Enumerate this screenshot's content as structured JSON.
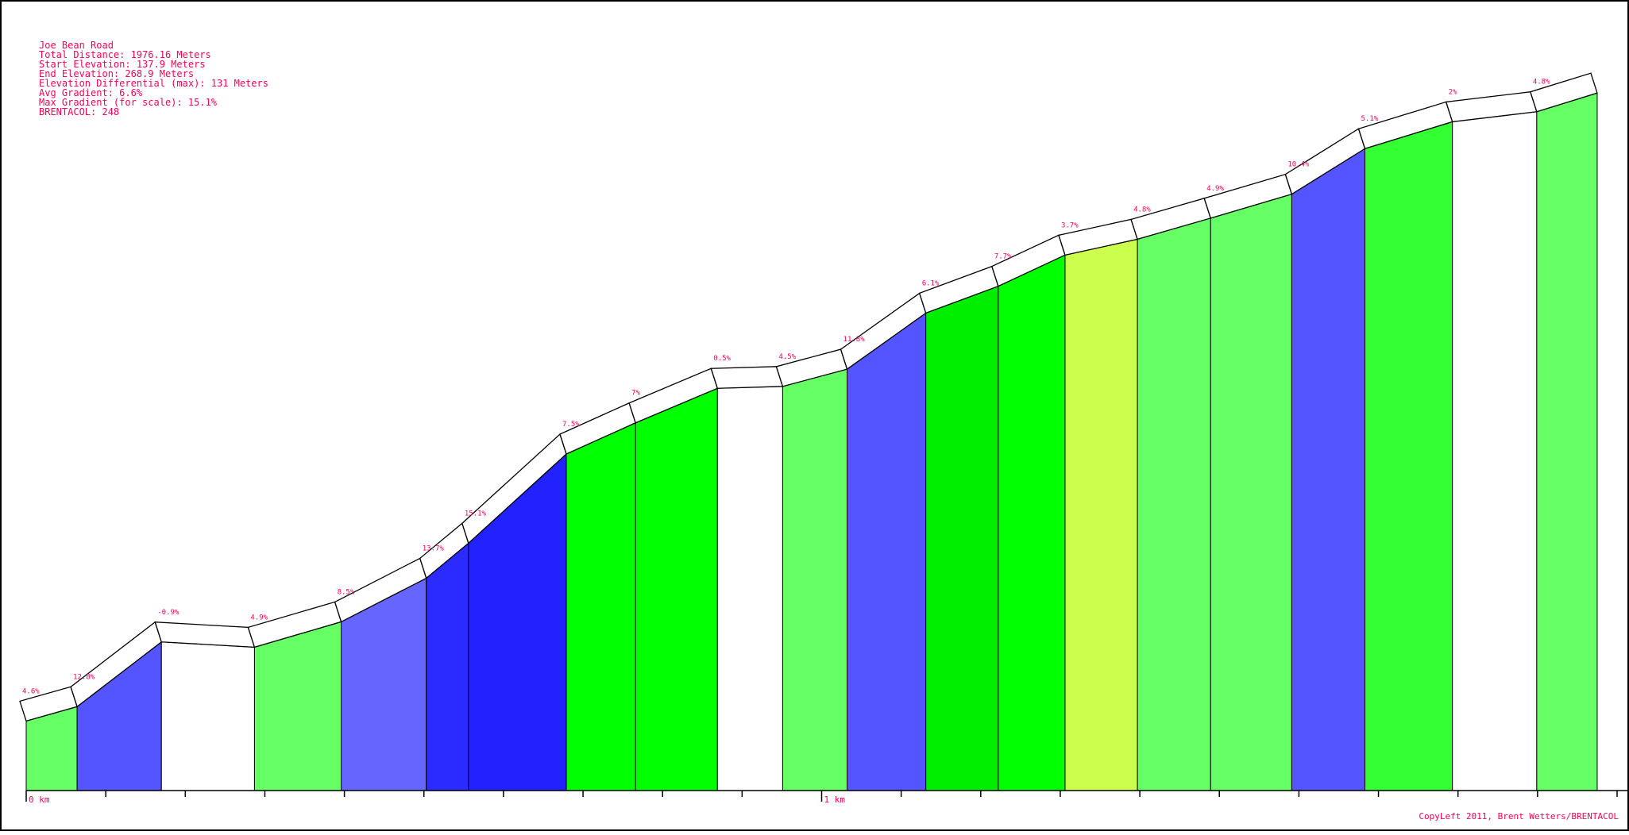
{
  "chart_data": {
    "type": "area",
    "info": [
      "Joe Bean Road",
      "Total Distance: 1976.16 Meters",
      "Start Elevation: 137.9 Meters",
      "End Elevation: 268.9 Meters",
      "Elevation Differential (max): 131 Meters",
      "Avg Gradient: 6.6%",
      "Max Gradient (for scale): 15.1%",
      "BRENTACOL: 248"
    ],
    "x_unit": "m",
    "xlim": [
      0,
      2015
    ],
    "x_tick_step": 100,
    "x_tick_labels": [
      {
        "x": 0,
        "label": "0 km"
      },
      {
        "x": 1000,
        "label": "1 km"
      }
    ],
    "elevation_start": 137.9,
    "segments": [
      {
        "x0": 0,
        "x1": 64,
        "y0": 137.9,
        "y1": 140.9,
        "grade_label": "4.6%",
        "color": "#66ff66"
      },
      {
        "x0": 64,
        "x1": 170,
        "y0": 140.9,
        "y1": 154.4,
        "grade_label": "12.8%",
        "color": "#5555ff"
      },
      {
        "x0": 170,
        "x1": 287,
        "y0": 154.4,
        "y1": 153.3,
        "grade_label": "-0.9%",
        "color": "#ffffff"
      },
      {
        "x0": 287,
        "x1": 396,
        "y0": 153.3,
        "y1": 158.6,
        "grade_label": "4.9%",
        "color": "#66ff66"
      },
      {
        "x0": 396,
        "x1": 503,
        "y0": 158.6,
        "y1": 167.7,
        "grade_label": "8.5%",
        "color": "#6666ff"
      },
      {
        "x0": 503,
        "x1": 556,
        "y0": 167.7,
        "y1": 175.0,
        "grade_label": "13.7%",
        "color": "#2b2bff"
      },
      {
        "x0": 556,
        "x1": 679,
        "y0": 175.0,
        "y1": 193.6,
        "grade_label": "15.1%",
        "color": "#2222ff"
      },
      {
        "x0": 679,
        "x1": 766,
        "y0": 193.6,
        "y1": 200.1,
        "grade_label": "7.5%",
        "color": "#00ff00"
      },
      {
        "x0": 766,
        "x1": 869,
        "y0": 200.1,
        "y1": 207.3,
        "grade_label": "7%",
        "color": "#00ff00"
      },
      {
        "x0": 869,
        "x1": 951,
        "y0": 207.3,
        "y1": 207.7,
        "grade_label": "0.5%",
        "color": "#ffffff"
      },
      {
        "x0": 951,
        "x1": 1032,
        "y0": 207.7,
        "y1": 211.3,
        "grade_label": "4.5%",
        "color": "#66ff66"
      },
      {
        "x0": 1032,
        "x1": 1131,
        "y0": 211.3,
        "y1": 223.0,
        "grade_label": "11.8%",
        "color": "#5555ff"
      },
      {
        "x0": 1131,
        "x1": 1222,
        "y0": 223.0,
        "y1": 228.6,
        "grade_label": "6.1%",
        "color": "#00ee00"
      },
      {
        "x0": 1222,
        "x1": 1306,
        "y0": 228.6,
        "y1": 235.1,
        "grade_label": "7.7%",
        "color": "#00ff00"
      },
      {
        "x0": 1306,
        "x1": 1397,
        "y0": 235.1,
        "y1": 238.4,
        "grade_label": "3.7%",
        "color": "#ccff4d"
      },
      {
        "x0": 1397,
        "x1": 1489,
        "y0": 238.4,
        "y1": 242.8,
        "grade_label": "4.8%",
        "color": "#66ff66"
      },
      {
        "x0": 1489,
        "x1": 1591,
        "y0": 242.8,
        "y1": 247.8,
        "grade_label": "4.9%",
        "color": "#66ff66"
      },
      {
        "x0": 1591,
        "x1": 1683,
        "y0": 247.8,
        "y1": 257.3,
        "grade_label": "10.4%",
        "color": "#5555ff"
      },
      {
        "x0": 1683,
        "x1": 1793,
        "y0": 257.3,
        "y1": 262.9,
        "grade_label": "5.1%",
        "color": "#33ff33"
      },
      {
        "x0": 1793,
        "x1": 1899,
        "y0": 262.9,
        "y1": 265.0,
        "grade_label": "2%",
        "color": "#ffffff"
      },
      {
        "x0": 1899,
        "x1": 1975,
        "y0": 265.0,
        "y1": 268.9,
        "grade_label": "4.8%",
        "color": "#66ff66"
      }
    ],
    "credit": "CopyLeft 2011, Brent Wetters/BRENTACOL"
  }
}
